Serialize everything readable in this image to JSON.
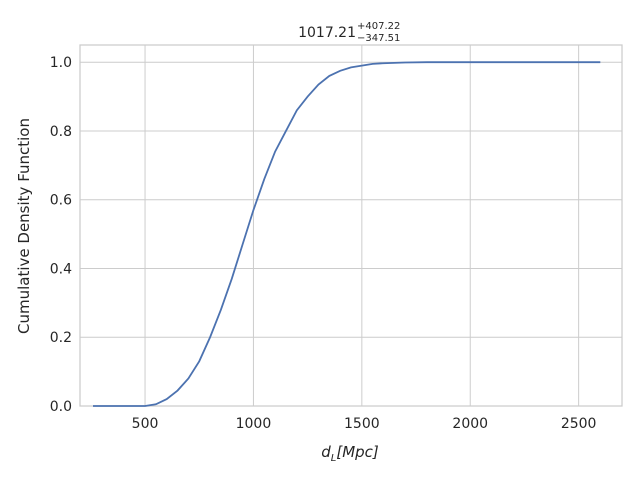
{
  "chart_data": {
    "type": "line",
    "title": {
      "value": "1017.21",
      "upper": "+407.22",
      "lower": "−347.51"
    },
    "xlabel": {
      "symbol": "d",
      "subscript": "L",
      "unit": "[Mpc]"
    },
    "ylabel": "Cumulative Density Function",
    "xlim": [
      200,
      2700
    ],
    "ylim": [
      0,
      1.05
    ],
    "x_ticks": [
      500,
      1000,
      1500,
      2000,
      2500
    ],
    "x_tick_labels": [
      "500",
      "1000",
      "1500",
      "2000",
      "2500"
    ],
    "y_ticks": [
      0.0,
      0.2,
      0.4,
      0.6,
      0.8,
      1.0
    ],
    "y_tick_labels": [
      "0.0",
      "0.2",
      "0.4",
      "0.6",
      "0.8",
      "1.0"
    ],
    "grid": true,
    "line_color": "#4c72b0",
    "grid_color": "#cccccc",
    "series": [
      {
        "x": [
          260,
          300,
          350,
          400,
          450,
          500,
          550,
          600,
          650,
          700,
          750,
          800,
          850,
          900,
          950,
          1000,
          1050,
          1100,
          1150,
          1200,
          1250,
          1300,
          1350,
          1400,
          1450,
          1500,
          1550,
          1600,
          1650,
          1700,
          1800,
          1900,
          2000,
          2100,
          2200,
          2300,
          2400,
          2500,
          2600
        ],
        "y": [
          0.0,
          0.0,
          0.0,
          0.0,
          0.0,
          0.0,
          0.005,
          0.02,
          0.045,
          0.08,
          0.13,
          0.2,
          0.28,
          0.37,
          0.47,
          0.57,
          0.66,
          0.74,
          0.8,
          0.86,
          0.9,
          0.935,
          0.96,
          0.975,
          0.985,
          0.99,
          0.995,
          0.997,
          0.998,
          0.999,
          1.0,
          1.0,
          1.0,
          1.0,
          1.0,
          1.0,
          1.0,
          1.0,
          1.0
        ]
      }
    ]
  }
}
